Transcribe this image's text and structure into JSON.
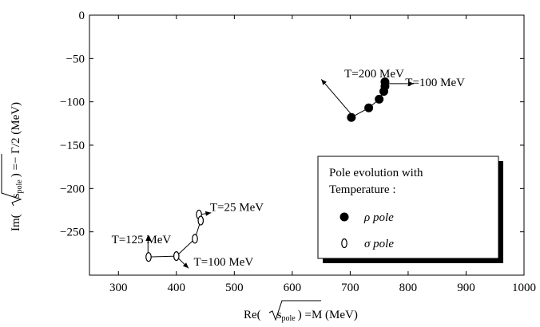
{
  "chart_data": {
    "type": "scatter",
    "xlabel_prefix": "Re(",
    "xlabel_sub": "s",
    "xlabel_subsub": "pole",
    "xlabel_suffix": ") =M   (MeV)",
    "ylabel_prefix": "Im(",
    "ylabel_sub": "s",
    "ylabel_subsub": "pole",
    "ylabel_suffix": ") =− Γ/2  (MeV)",
    "xlim": [
      250,
      1000
    ],
    "ylim": [
      -300,
      0
    ],
    "x_ticks": [
      300,
      400,
      500,
      600,
      700,
      800,
      900,
      1000
    ],
    "y_ticks": [
      0,
      -50,
      -100,
      -150,
      -200,
      -250
    ],
    "grid": false,
    "series": [
      {
        "name": "ρ pole",
        "marker": "filled-circle",
        "x": [
          760,
          760,
          758,
          750,
          732,
          702
        ],
        "y": [
          -77,
          -82,
          -88,
          -97,
          -107,
          -118
        ]
      },
      {
        "name": "σ pole",
        "marker": "open-ellipse",
        "x": [
          439,
          442,
          432,
          400,
          352
        ],
        "y": [
          -230,
          -237,
          -258,
          -278,
          -279
        ]
      }
    ],
    "annotations": [
      {
        "text": "T=200 MeV",
        "x": 690,
        "y": -72,
        "arrow_from": [
          704,
          -116
        ],
        "arrow_to": [
          650,
          -74
        ]
      },
      {
        "text": "T=100 MeV",
        "x": 795,
        "y": -82,
        "arrow_from": [
          763,
          -79
        ],
        "arrow_to": [
          810,
          -79
        ]
      },
      {
        "text": "T=25 MeV",
        "x": 458,
        "y": -226,
        "arrow_from": [
          441,
          -230
        ],
        "arrow_to": [
          460,
          -228
        ]
      },
      {
        "text": "T=125 MeV",
        "x": 288,
        "y": -263,
        "arrow_from": [
          351,
          -277
        ],
        "arrow_to": [
          351,
          -254
        ]
      },
      {
        "text": "T=100 MeV",
        "x": 430,
        "y": -289,
        "arrow_from": [
          401,
          -279
        ],
        "arrow_to": [
          421,
          -292
        ]
      }
    ],
    "legend": {
      "placement": "bottom-right",
      "title_line1": "Pole evolution with",
      "title_line2": "Temperature :",
      "entries": [
        "ρ pole",
        "σ pole"
      ]
    }
  }
}
